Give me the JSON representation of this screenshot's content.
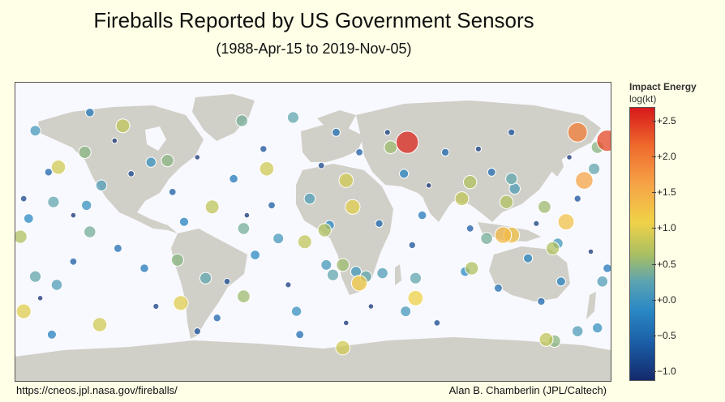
{
  "title": "Fireballs Reported by US Government Sensors",
  "subtitle": "(1988-Apr-15 to 2019-Nov-05)",
  "source": "https://cneos.jpl.nasa.gov/fireballs/",
  "credit": "Alan B. Chamberlin (JPL/Caltech)",
  "colorbar": {
    "title": "Impact Energy",
    "unit": "log(kt)",
    "ticks": [
      "+2.5",
      "+2.0",
      "+1.5",
      "+1.0",
      "+0.5",
      "+0.0",
      "−0.5",
      "−1.0"
    ],
    "range": [
      -1.1,
      2.7
    ]
  },
  "colors": {
    "background": "#fffee6",
    "ocean": "#f8f8ff",
    "land": "#d0d0c8",
    "high_energy": "#d7191c",
    "low_energy": "#13296b"
  },
  "chart_data": {
    "type": "scatter",
    "x_field": "longitude",
    "y_field": "latitude",
    "value_field": "log_energy_kt",
    "xlim": [
      -180,
      180
    ],
    "ylim": [
      -90,
      90
    ],
    "points": [
      {
        "lon": 57,
        "lat": 54,
        "e": 2.6
      },
      {
        "lon": 178,
        "lat": 55,
        "e": 2.4
      },
      {
        "lon": 160,
        "lat": 60,
        "e": 2.0
      },
      {
        "lon": 164,
        "lat": 31,
        "e": 1.6
      },
      {
        "lon": 115,
        "lat": -2,
        "e": 1.4
      },
      {
        "lon": 120,
        "lat": -2,
        "e": 1.3
      },
      {
        "lon": 153,
        "lat": 6,
        "e": 1.3
      },
      {
        "lon": 28,
        "lat": -31,
        "e": 1.2
      },
      {
        "lon": 62,
        "lat": -40,
        "e": 1.1
      },
      {
        "lon": 24,
        "lat": 15,
        "e": 1.0
      },
      {
        "lon": -28,
        "lat": 38,
        "e": 0.9
      },
      {
        "lon": -154,
        "lat": 39,
        "e": 0.9
      },
      {
        "lon": -175,
        "lat": -48,
        "e": 1.0
      },
      {
        "lon": -129,
        "lat": -56,
        "e": 0.9
      },
      {
        "lon": -80,
        "lat": -43,
        "e": 1.0
      },
      {
        "lon": 20,
        "lat": 31,
        "e": 0.9
      },
      {
        "lon": 18,
        "lat": -70,
        "e": 0.9
      },
      {
        "lon": 141,
        "lat": -65,
        "e": 0.8
      },
      {
        "lon": -115,
        "lat": 64,
        "e": 0.8
      },
      {
        "lon": -61,
        "lat": 15,
        "e": 0.8
      },
      {
        "lon": 90,
        "lat": 20,
        "e": 0.8
      },
      {
        "lon": -5,
        "lat": -6,
        "e": 0.8
      },
      {
        "lon": 7,
        "lat": 1,
        "e": 0.7
      },
      {
        "lon": 96,
        "lat": -22,
        "e": 0.7
      },
      {
        "lon": 145,
        "lat": -10,
        "e": 0.7
      },
      {
        "lon": 117,
        "lat": 18,
        "e": 0.7
      },
      {
        "lon": 95,
        "lat": 30,
        "e": 0.7
      },
      {
        "lon": -177,
        "lat": -3,
        "e": 0.7
      },
      {
        "lon": 18,
        "lat": -20,
        "e": 0.6
      },
      {
        "lon": 47,
        "lat": 51,
        "e": 0.6
      },
      {
        "lon": -42,
        "lat": -39,
        "e": 0.6
      },
      {
        "lon": 140,
        "lat": 15,
        "e": 0.6
      },
      {
        "lon": -82,
        "lat": -17,
        "e": 0.5
      },
      {
        "lon": -138,
        "lat": 48,
        "e": 0.5
      },
      {
        "lon": 172,
        "lat": 51,
        "e": 0.5
      },
      {
        "lon": 146,
        "lat": -66,
        "e": 0.5
      },
      {
        "lon": -88,
        "lat": 43,
        "e": 0.5
      },
      {
        "lon": -135,
        "lat": 0,
        "e": 0.4
      },
      {
        "lon": -43,
        "lat": 67,
        "e": 0.4
      },
      {
        "lon": -42,
        "lat": 2,
        "e": 0.4
      },
      {
        "lon": 105,
        "lat": -4,
        "e": 0.4
      },
      {
        "lon": 12,
        "lat": -26,
        "e": 0.3
      },
      {
        "lon": 120,
        "lat": 32,
        "e": 0.3
      },
      {
        "lon": -12,
        "lat": 69,
        "e": 0.3
      },
      {
        "lon": 62,
        "lat": -28,
        "e": 0.3
      },
      {
        "lon": 170,
        "lat": 38,
        "e": 0.3
      },
      {
        "lon": -65,
        "lat": -28,
        "e": 0.3
      },
      {
        "lon": -157,
        "lat": 18,
        "e": 0.3
      },
      {
        "lon": -168,
        "lat": -27,
        "e": 0.3
      },
      {
        "lon": 32,
        "lat": -27,
        "e": 0.3
      },
      {
        "lon": 42,
        "lat": -25,
        "e": 0.2
      },
      {
        "lon": 175,
        "lat": -30,
        "e": 0.2
      },
      {
        "lon": -2,
        "lat": 20,
        "e": 0.2
      },
      {
        "lon": 160,
        "lat": -60,
        "e": 0.2
      },
      {
        "lon": -128,
        "lat": 28,
        "e": 0.2
      },
      {
        "lon": -155,
        "lat": -32,
        "e": 0.2
      },
      {
        "lon": 122,
        "lat": 26,
        "e": 0.2
      },
      {
        "lon": -168,
        "lat": 61,
        "e": 0.1
      },
      {
        "lon": 148,
        "lat": -7,
        "e": 0.1
      },
      {
        "lon": 26,
        "lat": -24,
        "e": 0.1
      },
      {
        "lon": -21,
        "lat": -4,
        "e": 0.1
      },
      {
        "lon": 8,
        "lat": -20,
        "e": 0.1
      },
      {
        "lon": 56,
        "lat": -48,
        "e": 0.1
      },
      {
        "lon": -10,
        "lat": -48,
        "e": 0.0
      },
      {
        "lon": 172,
        "lat": -58,
        "e": 0.0
      },
      {
        "lon": -98,
        "lat": 42,
        "e": 0.0
      },
      {
        "lon": -137,
        "lat": 16,
        "e": 0.0
      },
      {
        "lon": 10,
        "lat": 4,
        "e": -0.1
      },
      {
        "lon": -35,
        "lat": -14,
        "e": -0.1
      },
      {
        "lon": 92,
        "lat": -24,
        "e": -0.1
      },
      {
        "lon": -172,
        "lat": 8,
        "e": -0.1
      },
      {
        "lon": 55,
        "lat": 35,
        "e": -0.2
      },
      {
        "lon": -78,
        "lat": 6,
        "e": -0.2
      },
      {
        "lon": 150,
        "lat": -30,
        "e": -0.2
      },
      {
        "lon": -158,
        "lat": -62,
        "e": -0.2
      },
      {
        "lon": 130,
        "lat": -16,
        "e": -0.2
      },
      {
        "lon": -102,
        "lat": -22,
        "e": -0.3
      },
      {
        "lon": 66,
        "lat": 10,
        "e": -0.3
      },
      {
        "lon": -135,
        "lat": 72,
        "e": -0.3
      },
      {
        "lon": 178,
        "lat": -22,
        "e": -0.3
      },
      {
        "lon": -48,
        "lat": 32,
        "e": -0.3
      },
      {
        "lon": 14,
        "lat": 60,
        "e": -0.4
      },
      {
        "lon": 108,
        "lat": 36,
        "e": -0.4
      },
      {
        "lon": -118,
        "lat": -10,
        "e": -0.4
      },
      {
        "lon": 112,
        "lat": -34,
        "e": -0.4
      },
      {
        "lon": -8,
        "lat": -62,
        "e": -0.4
      },
      {
        "lon": 80,
        "lat": 48,
        "e": -0.5
      },
      {
        "lon": -160,
        "lat": 36,
        "e": -0.5
      },
      {
        "lon": 40,
        "lat": 5,
        "e": -0.5
      },
      {
        "lon": -58,
        "lat": -52,
        "e": -0.5
      },
      {
        "lon": 138,
        "lat": -42,
        "e": -0.5
      },
      {
        "lon": -85,
        "lat": 24,
        "e": -0.6
      },
      {
        "lon": 28,
        "lat": 48,
        "e": -0.6
      },
      {
        "lon": -25,
        "lat": 16,
        "e": -0.6
      },
      {
        "lon": 95,
        "lat": 2,
        "e": -0.6
      },
      {
        "lon": -145,
        "lat": -18,
        "e": -0.6
      },
      {
        "lon": 60,
        "lat": -8,
        "e": -0.7
      },
      {
        "lon": -70,
        "lat": -60,
        "e": -0.7
      },
      {
        "lon": 160,
        "lat": 20,
        "e": -0.7
      },
      {
        "lon": -30,
        "lat": 50,
        "e": -0.7
      },
      {
        "lon": 120,
        "lat": 60,
        "e": -0.7
      },
      {
        "lon": -110,
        "lat": 35,
        "e": -0.8
      },
      {
        "lon": 5,
        "lat": 40,
        "e": -0.8
      },
      {
        "lon": 75,
        "lat": -55,
        "e": -0.8
      },
      {
        "lon": -175,
        "lat": 20,
        "e": -0.8
      },
      {
        "lon": -52,
        "lat": -30,
        "e": -0.8
      },
      {
        "lon": 135,
        "lat": 5,
        "e": -0.9
      },
      {
        "lon": -95,
        "lat": -45,
        "e": -0.9
      },
      {
        "lon": 45,
        "lat": 60,
        "e": -0.9
      },
      {
        "lon": -15,
        "lat": -32,
        "e": -0.9
      },
      {
        "lon": 100,
        "lat": 50,
        "e": -0.9
      },
      {
        "lon": -165,
        "lat": -40,
        "e": -1.0
      },
      {
        "lon": 35,
        "lat": -45,
        "e": -1.0
      },
      {
        "lon": -120,
        "lat": 55,
        "e": -1.0
      },
      {
        "lon": 168,
        "lat": -12,
        "e": -1.0
      },
      {
        "lon": -70,
        "lat": 45,
        "e": -1.0
      },
      {
        "lon": 70,
        "lat": 28,
        "e": -1.0
      },
      {
        "lon": -40,
        "lat": 10,
        "e": -1.0
      },
      {
        "lon": 155,
        "lat": 45,
        "e": -1.0
      },
      {
        "lon": -145,
        "lat": 10,
        "e": -1.0
      },
      {
        "lon": 20,
        "lat": -55,
        "e": -1.0
      }
    ]
  }
}
